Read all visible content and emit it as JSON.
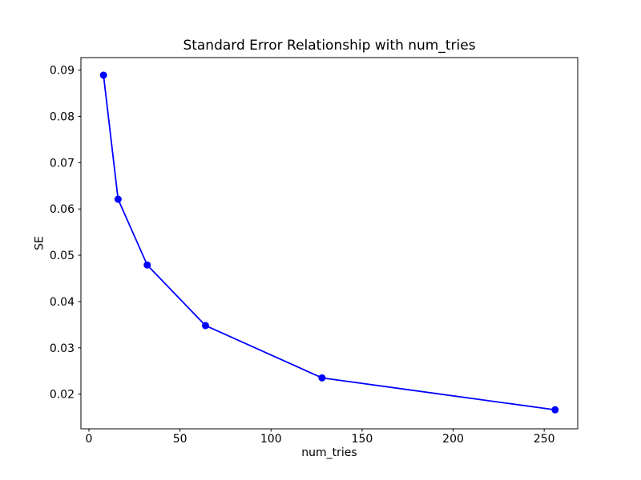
{
  "chart_data": {
    "type": "line",
    "title": "Standard Error Relationship with num_tries",
    "xlabel": "num_tries",
    "ylabel": "SE",
    "series": [
      {
        "name": "SE",
        "color": "#0000ff",
        "marker": "circle",
        "x": [
          8,
          16,
          32,
          64,
          128,
          256
        ],
        "y": [
          0.0889,
          0.0621,
          0.0479,
          0.0348,
          0.0235,
          0.0166
        ]
      }
    ],
    "xlim": [
      -4.4,
      268.4
    ],
    "ylim": [
      0.0125,
      0.0927
    ],
    "x_ticks": [
      0,
      50,
      100,
      150,
      200,
      250
    ],
    "y_ticks": [
      0.02,
      0.03,
      0.04,
      0.05,
      0.06,
      0.07,
      0.08,
      0.09
    ],
    "y_tick_decimals": 2,
    "grid": false,
    "legend_position": "none",
    "background_color": "#ffffff",
    "spine_color": "#000000"
  }
}
